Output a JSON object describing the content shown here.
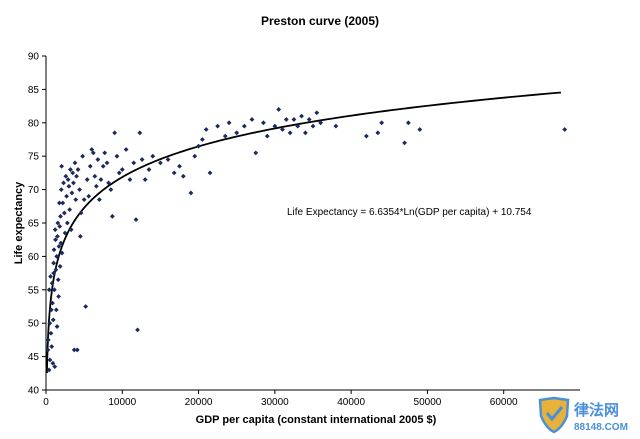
{
  "chart_data": {
    "type": "scatter",
    "title": "Preston curve (2005)",
    "xlabel": "GDP per capita (constant international 2005 $)",
    "ylabel": "Life expectancy",
    "xlim": [
      0,
      70000
    ],
    "ylim": [
      40,
      90
    ],
    "x_ticks": [
      "0",
      "10000",
      "20000",
      "30000",
      "40000",
      "50000",
      "60000"
    ],
    "y_ticks": [
      "40",
      "45",
      "50",
      "55",
      "60",
      "65",
      "70",
      "75",
      "80",
      "85",
      "90"
    ],
    "grid": false,
    "legend": "none",
    "marker_color": "#1c2a5c",
    "trendline": {
      "label": "Life Expectancy = 6.6354*Ln(GDP per capita) + 10.754",
      "slope": 6.6354,
      "intercept": 10.754,
      "x_range": [
        120,
        67500
      ]
    },
    "series": [
      {
        "points": [
          [
            250,
            46
          ],
          [
            300,
            47.5
          ],
          [
            400,
            43
          ],
          [
            420,
            55
          ],
          [
            500,
            50
          ],
          [
            520,
            44.5
          ],
          [
            600,
            57
          ],
          [
            650,
            48.5
          ],
          [
            700,
            52
          ],
          [
            750,
            46.5
          ],
          [
            800,
            56
          ],
          [
            850,
            53
          ],
          [
            900,
            44
          ],
          [
            950,
            50.5
          ],
          [
            1000,
            59
          ],
          [
            1000,
            57.5
          ],
          [
            1050,
            61
          ],
          [
            1100,
            55
          ],
          [
            1150,
            43.5
          ],
          [
            1200,
            64
          ],
          [
            1250,
            62.5
          ],
          [
            1300,
            58
          ],
          [
            1350,
            52
          ],
          [
            1400,
            60
          ],
          [
            1450,
            49.5
          ],
          [
            1500,
            63
          ],
          [
            1550,
            65
          ],
          [
            1600,
            56.5
          ],
          [
            1650,
            54
          ],
          [
            1700,
            61.5
          ],
          [
            1750,
            68
          ],
          [
            1800,
            64.5
          ],
          [
            1850,
            58.5
          ],
          [
            1900,
            66
          ],
          [
            1950,
            62
          ],
          [
            2000,
            70
          ],
          [
            2050,
            73.5
          ],
          [
            2100,
            60.5
          ],
          [
            2200,
            68
          ],
          [
            2300,
            71
          ],
          [
            2400,
            66.5
          ],
          [
            2500,
            63.5
          ],
          [
            2600,
            72
          ],
          [
            2700,
            69
          ],
          [
            2800,
            65
          ],
          [
            2900,
            71.5
          ],
          [
            3000,
            70.5
          ],
          [
            3100,
            67
          ],
          [
            3200,
            73
          ],
          [
            3300,
            64
          ],
          [
            3400,
            69.5
          ],
          [
            3500,
            72.5
          ],
          [
            3600,
            71
          ],
          [
            3700,
            46
          ],
          [
            3800,
            74
          ],
          [
            3900,
            68.5
          ],
          [
            4000,
            72
          ],
          [
            4100,
            46
          ],
          [
            4200,
            73
          ],
          [
            4400,
            70
          ],
          [
            4500,
            63
          ],
          [
            4600,
            66.5
          ],
          [
            4800,
            75
          ],
          [
            5000,
            68.5
          ],
          [
            5200,
            52.5
          ],
          [
            5400,
            71.5
          ],
          [
            5600,
            69
          ],
          [
            5800,
            73.5
          ],
          [
            6000,
            76
          ],
          [
            6200,
            75.5
          ],
          [
            6400,
            72
          ],
          [
            6600,
            70.5
          ],
          [
            6800,
            74.5
          ],
          [
            7000,
            68.5
          ],
          [
            7200,
            71.5
          ],
          [
            7500,
            73.5
          ],
          [
            7700,
            75.5
          ],
          [
            8000,
            74
          ],
          [
            8200,
            71
          ],
          [
            8500,
            70
          ],
          [
            8700,
            66
          ],
          [
            9000,
            78.5
          ],
          [
            9300,
            75
          ],
          [
            9600,
            72.5
          ],
          [
            10000,
            73
          ],
          [
            10500,
            76
          ],
          [
            11000,
            71.5
          ],
          [
            11500,
            74
          ],
          [
            11800,
            65.5
          ],
          [
            12000,
            49
          ],
          [
            12300,
            78.5
          ],
          [
            12600,
            74.5
          ],
          [
            13000,
            71.5
          ],
          [
            13500,
            73
          ],
          [
            14000,
            75
          ],
          [
            15000,
            74
          ],
          [
            16000,
            74.5
          ],
          [
            16800,
            72.5
          ],
          [
            17500,
            73.5
          ],
          [
            18000,
            72
          ],
          [
            19000,
            69.5
          ],
          [
            19500,
            75
          ],
          [
            20000,
            76.5
          ],
          [
            20500,
            77.5
          ],
          [
            21000,
            79
          ],
          [
            21500,
            72.5
          ],
          [
            22500,
            79.5
          ],
          [
            23500,
            78
          ],
          [
            24000,
            80
          ],
          [
            25000,
            78.5
          ],
          [
            26000,
            79.5
          ],
          [
            27000,
            80.5
          ],
          [
            27500,
            75.5
          ],
          [
            28500,
            80
          ],
          [
            29000,
            78
          ],
          [
            30000,
            79.5
          ],
          [
            30500,
            82
          ],
          [
            31000,
            79
          ],
          [
            31500,
            80.5
          ],
          [
            32000,
            78.5
          ],
          [
            32500,
            80.5
          ],
          [
            33000,
            79.5
          ],
          [
            33500,
            81
          ],
          [
            34000,
            78.5
          ],
          [
            34500,
            80.5
          ],
          [
            35000,
            79.5
          ],
          [
            35500,
            81.5
          ],
          [
            36000,
            80
          ],
          [
            38000,
            79.5
          ],
          [
            42000,
            78
          ],
          [
            43500,
            78.5
          ],
          [
            44000,
            80
          ],
          [
            47000,
            77
          ],
          [
            47500,
            80
          ],
          [
            49000,
            79
          ],
          [
            68000,
            79
          ]
        ]
      }
    ]
  },
  "watermark": {
    "brand": "律法网",
    "site": "88148.COM"
  }
}
